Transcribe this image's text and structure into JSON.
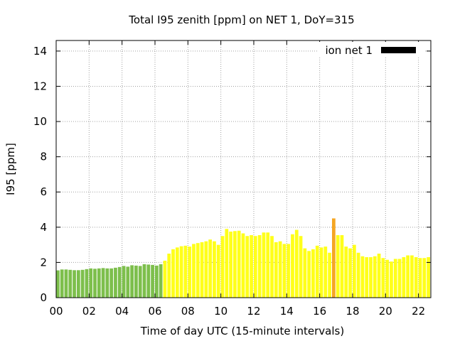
{
  "chart_data": {
    "type": "bar",
    "title": "Total I95 zenith [ppm] on NET 1, DoY=315",
    "xlabel": "Time of day UTC (15-minute intervals)",
    "ylabel": "I95 [ppm]",
    "x_ticks": [
      "00",
      "02",
      "04",
      "06",
      "08",
      "10",
      "12",
      "14",
      "16",
      "18",
      "20",
      "22"
    ],
    "y_ticks": [
      "0",
      "2",
      "4",
      "6",
      "8",
      "10",
      "12",
      "14"
    ],
    "xlim": [
      0,
      22.75
    ],
    "ylim": [
      0,
      14.6
    ],
    "interval_hours": 0.25,
    "grid": true,
    "legend": {
      "label": "ion net 1",
      "color": "#000000",
      "position": "top-right"
    },
    "colors": {
      "low": "#7dbf4c",
      "medium": "#ffff1a",
      "high": "#f5a623"
    },
    "series": [
      {
        "name": "ion net 1",
        "values": [
          1.55,
          1.6,
          1.6,
          1.58,
          1.56,
          1.56,
          1.58,
          1.62,
          1.66,
          1.64,
          1.66,
          1.68,
          1.66,
          1.66,
          1.7,
          1.74,
          1.8,
          1.76,
          1.84,
          1.82,
          1.8,
          1.9,
          1.88,
          1.86,
          1.82,
          1.9,
          2.1,
          2.5,
          2.75,
          2.85,
          2.92,
          2.95,
          2.9,
          3.05,
          3.1,
          3.15,
          3.2,
          3.3,
          3.2,
          3.0,
          3.5,
          3.9,
          3.75,
          3.78,
          3.8,
          3.65,
          3.5,
          3.55,
          3.5,
          3.55,
          3.7,
          3.7,
          3.5,
          3.15,
          3.2,
          3.05,
          3.05,
          3.6,
          3.85,
          3.5,
          2.8,
          2.65,
          2.75,
          2.95,
          2.85,
          2.9,
          2.55,
          4.5,
          3.55,
          3.55,
          2.9,
          2.8,
          3.0,
          2.55,
          2.35,
          2.3,
          2.3,
          2.35,
          2.5,
          2.25,
          2.15,
          2.05,
          2.2,
          2.2,
          2.3,
          2.4,
          2.4,
          2.3,
          2.25,
          2.25,
          2.3
        ],
        "levels": [
          "low",
          "low",
          "low",
          "low",
          "low",
          "low",
          "low",
          "low",
          "low",
          "low",
          "low",
          "low",
          "low",
          "low",
          "low",
          "low",
          "low",
          "low",
          "low",
          "low",
          "low",
          "low",
          "low",
          "low",
          "low",
          "low",
          "medium",
          "medium",
          "medium",
          "medium",
          "medium",
          "medium",
          "medium",
          "medium",
          "medium",
          "medium",
          "medium",
          "medium",
          "medium",
          "medium",
          "medium",
          "medium",
          "medium",
          "medium",
          "medium",
          "medium",
          "medium",
          "medium",
          "medium",
          "medium",
          "medium",
          "medium",
          "medium",
          "medium",
          "medium",
          "medium",
          "medium",
          "medium",
          "medium",
          "medium",
          "medium",
          "medium",
          "medium",
          "medium",
          "medium",
          "medium",
          "medium",
          "high",
          "medium",
          "medium",
          "medium",
          "medium",
          "medium",
          "medium",
          "medium",
          "medium",
          "medium",
          "medium",
          "medium",
          "medium",
          "medium",
          "medium",
          "medium",
          "medium",
          "medium",
          "medium",
          "medium",
          "medium",
          "medium",
          "medium",
          "medium"
        ]
      }
    ]
  }
}
